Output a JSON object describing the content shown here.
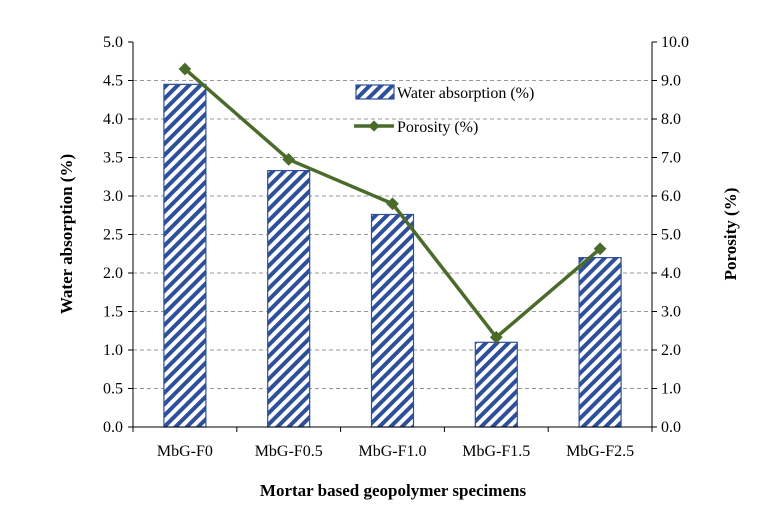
{
  "chart_data": {
    "type": "bar",
    "categories": [
      "MbG-F0",
      "MbG-F0.5",
      "MbG-F1.0",
      "MbG-F1.5",
      "MbG-F2.5"
    ],
    "series": [
      {
        "name": "Water absorption (%)",
        "type": "bar",
        "axis": "left",
        "values": [
          4.45,
          3.33,
          2.76,
          1.1,
          2.2
        ],
        "color": "#2e4f9a"
      },
      {
        "name": "Porosity (%)",
        "type": "line",
        "axis": "right",
        "values": [
          9.3,
          6.95,
          5.8,
          2.33,
          4.63
        ],
        "color": "#4a6b2a"
      }
    ],
    "xlabel": "Mortar based geopolymer specimens",
    "ylabel": "Water absorption (%)",
    "y2label": "Porosity (%)",
    "ylim": [
      0,
      5.0
    ],
    "y2lim": [
      0,
      10.0
    ],
    "yticks": [
      "0.0",
      "0.5",
      "1.0",
      "1.5",
      "2.0",
      "2.5",
      "3.0",
      "3.5",
      "4.0",
      "4.5",
      "5.0"
    ],
    "y2ticks": [
      "0.0",
      "1.0",
      "2.0",
      "3.0",
      "4.0",
      "5.0",
      "6.0",
      "7.0",
      "8.0",
      "9.0",
      "10.0"
    ],
    "grid": true,
    "legend_position": "top-center"
  }
}
